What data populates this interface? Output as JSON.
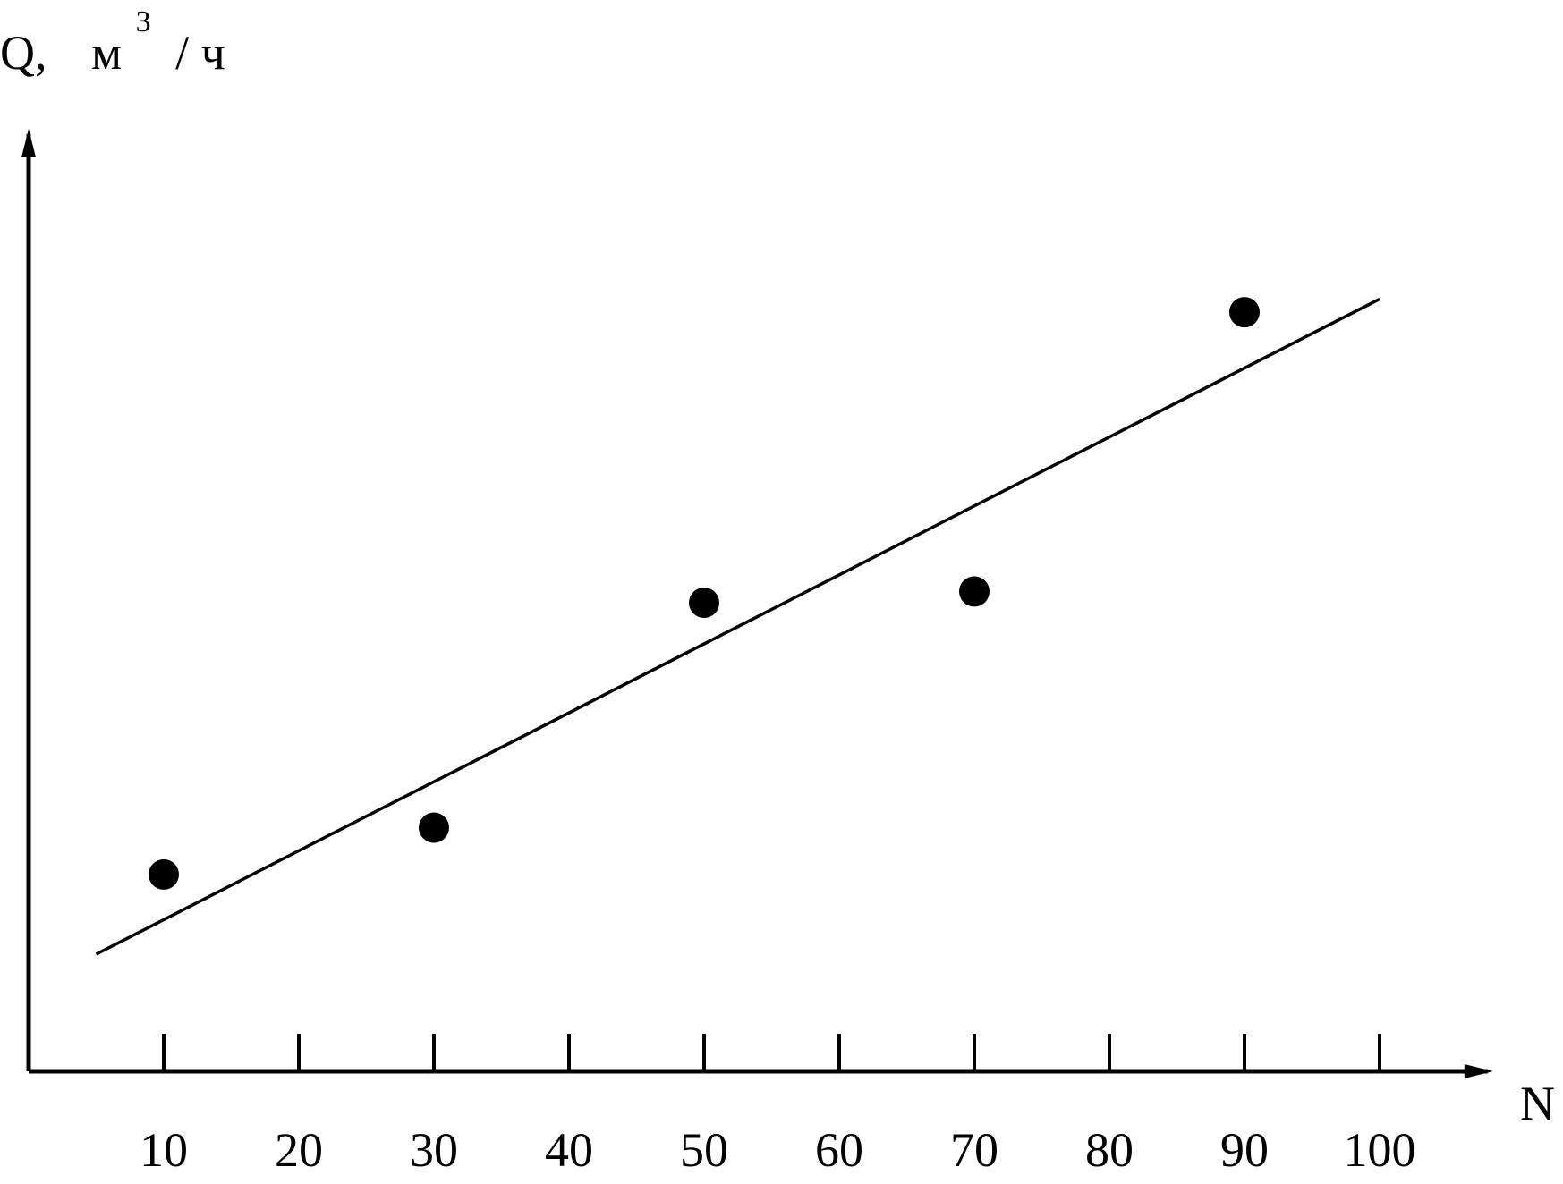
{
  "chart_data": {
    "type": "scatter",
    "ylabel": {
      "prefix": "Q,",
      "unit_base": "м",
      "unit_sup": "3",
      "unit_rest": "/ ч"
    },
    "xlabel": "N",
    "x_ticks": [
      10,
      20,
      30,
      40,
      50,
      60,
      70,
      80,
      90,
      100
    ],
    "x_tick_labels": [
      "10",
      "20",
      "30",
      "40",
      "50",
      "60",
      "70",
      "80",
      "90",
      "100"
    ],
    "xlim": [
      0,
      108
    ],
    "ylim": [
      0,
      100
    ],
    "y_ticks_shown": false,
    "grid": false,
    "series": [
      {
        "points": [
          {
            "x": 10,
            "y": 21
          },
          {
            "x": 30,
            "y": 26
          },
          {
            "x": 50,
            "y": 50
          },
          {
            "x": 70,
            "y": 51.2
          },
          {
            "x": 90,
            "y": 81
          }
        ],
        "marker": "filled-circle",
        "color": "#000000"
      }
    ],
    "trend_line": {
      "x": [
        5,
        100
      ],
      "y": [
        12.5,
        82.4
      ],
      "color": "#000000"
    }
  }
}
